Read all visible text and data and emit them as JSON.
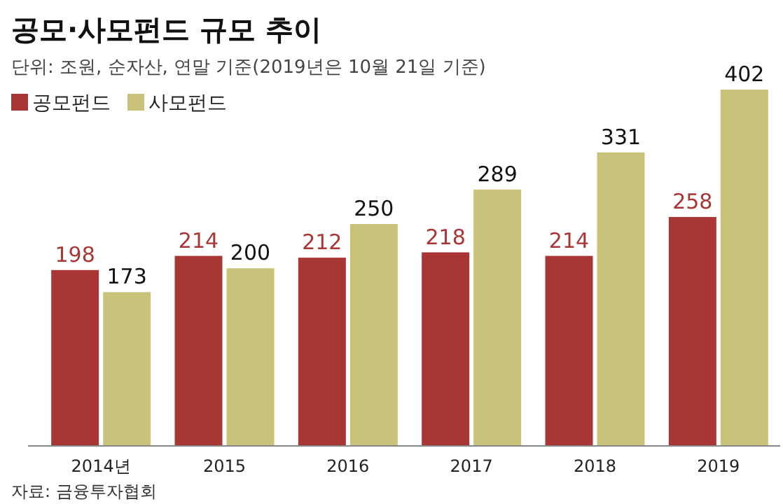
{
  "chart_data": {
    "type": "bar",
    "title": "공모·사모펀드 규모 추이",
    "subtitle": "단위: 조원, 순자산, 연말 기준(2019년은 10월 21일 기준)",
    "categories": [
      "2014년",
      "2015",
      "2016",
      "2017",
      "2018",
      "2019"
    ],
    "series": [
      {
        "name": "공모펀드",
        "color": "#a83634",
        "values": [
          198,
          214,
          212,
          218,
          214,
          258
        ]
      },
      {
        "name": "사모펀드",
        "color": "#c8c27a",
        "values": [
          173,
          200,
          250,
          289,
          331,
          402
        ]
      }
    ],
    "data_labels": true,
    "legend": "top left",
    "annotations": [
      "자료: 금융투자협회"
    ]
  }
}
